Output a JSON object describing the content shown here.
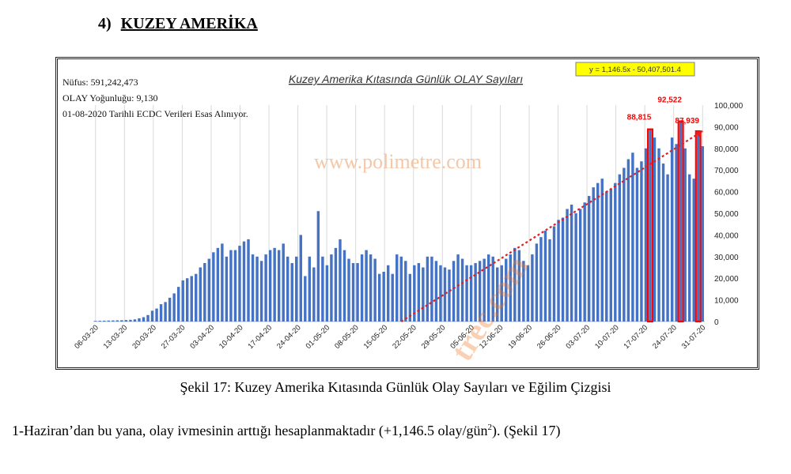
{
  "heading": {
    "number": "4)",
    "title": "KUZEY AMERİKA"
  },
  "caption": "Şekil 17: Kuzey Amerika Kıtasında Günlük Olay Sayıları ve Eğilim Çizgisi",
  "paragraph": {
    "before": "1-Haziran’dan bu yana, olay ivmesinin arttığı hesaplanmaktadır (+1,146.5 olay/gün",
    "sup": "2",
    "after": "). (Şekil 17)"
  },
  "page_watermark": "trec.com",
  "chart_data": {
    "type": "bar",
    "title": "Kuzey Amerika Kıtasında Günlük OLAY Sayıları",
    "info_lines": [
      "Nüfus: 591,242,473",
      "OLAY Yoğunluğu: 9,130",
      "01-08-2020 Tarihli ECDC Verileri Esas Alınıyor."
    ],
    "watermark": "www.polimetre.com",
    "equation": "y = 1,146.5x - 50,407,501.4",
    "ylim": [
      0,
      100000
    ],
    "yticks": [
      0,
      10000,
      20000,
      30000,
      40000,
      50000,
      60000,
      70000,
      80000,
      90000,
      100000
    ],
    "ytick_labels": [
      "0",
      "10,000",
      "20,000",
      "30,000",
      "40,000",
      "50,000",
      "60,000",
      "70,000",
      "80,000",
      "90,000",
      "100,000"
    ],
    "xtick_labels": [
      "06-03-20",
      "13-03-20",
      "20-03-20",
      "27-03-20",
      "03-04-20",
      "10-04-20",
      "17-04-20",
      "24-04-20",
      "01-05-20",
      "08-05-20",
      "15-05-20",
      "22-05-20",
      "29-05-20",
      "05-06-20",
      "12-06-20",
      "19-06-20",
      "26-06-20",
      "03-07-20",
      "10-07-20",
      "17-07-20",
      "24-07-20",
      "31-07-20"
    ],
    "start_date": "06-03-20",
    "values": [
      300,
      350,
      400,
      450,
      500,
      550,
      600,
      700,
      800,
      1000,
      1500,
      2000,
      3000,
      5000,
      6000,
      8000,
      9000,
      11000,
      13000,
      16000,
      19000,
      20000,
      21000,
      22000,
      25000,
      27000,
      29000,
      32000,
      34000,
      36000,
      30000,
      33000,
      33000,
      35000,
      37000,
      38000,
      31000,
      30000,
      28000,
      31000,
      33000,
      34000,
      33000,
      36000,
      30000,
      27000,
      30000,
      40000,
      21000,
      30000,
      25000,
      51000,
      30000,
      26000,
      31000,
      34000,
      38000,
      33000,
      29000,
      27000,
      27000,
      31000,
      33000,
      31000,
      29000,
      22000,
      23000,
      26000,
      22000,
      31000,
      30000,
      28000,
      22000,
      26000,
      27000,
      25000,
      30000,
      30000,
      28000,
      26000,
      25000,
      24000,
      28000,
      31000,
      29000,
      26000,
      26000,
      27000,
      28000,
      29000,
      31000,
      30000,
      25000,
      26000,
      29000,
      31000,
      34000,
      33000,
      28000,
      26000,
      31000,
      36000,
      39000,
      42000,
      38000,
      44000,
      47000,
      48000,
      52000,
      54000,
      50000,
      52000,
      55000,
      58000,
      62000,
      64000,
      66000,
      60000,
      61000,
      64000,
      68000,
      71000,
      75000,
      78000,
      71000,
      74000,
      80000,
      88815,
      85000,
      80000,
      73000,
      68000,
      85000,
      82000,
      92522,
      80000,
      68000,
      66000,
      87939,
      81000
    ],
    "highlighted": [
      {
        "label": "88,815",
        "value": 88815
      },
      {
        "label": "92,522",
        "value": 92522
      },
      {
        "label": "87,939",
        "value": 87939
      }
    ],
    "trendline": {
      "start_value": 0,
      "end_value": 88000
    },
    "colors": {
      "bar": "#4472c4",
      "highlight": "#ff0000",
      "trend": "#e02020",
      "equation_bg": "#ffff00"
    },
    "grid": "vertical"
  }
}
